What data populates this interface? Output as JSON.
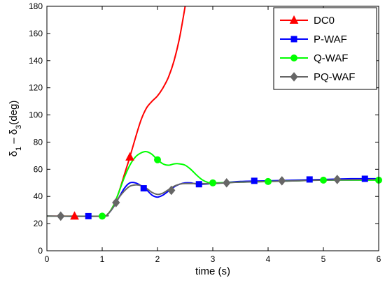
{
  "chart_data": {
    "type": "line",
    "xlabel": "time (s)",
    "ylabel": {
      "base": "δ",
      "sub1": "1",
      "sep": " – δ",
      "sub2": "3",
      "unit": "(deg)"
    },
    "xlim": [
      0,
      6
    ],
    "ylim": [
      0,
      180
    ],
    "xticks": [
      "0",
      "1",
      "2",
      "3",
      "4",
      "5",
      "6"
    ],
    "yticks": [
      "0",
      "20",
      "40",
      "60",
      "80",
      "100",
      "120",
      "140",
      "160",
      "180"
    ],
    "grid": false,
    "legend_position": "top-right",
    "series": [
      {
        "name": "DC0",
        "color": "#ff0000",
        "marker": "triangle",
        "points": [
          [
            0,
            25.5
          ],
          [
            0.5,
            25.5
          ],
          [
            1.0,
            25.5
          ],
          [
            1.1,
            27
          ],
          [
            1.2,
            33
          ],
          [
            1.3,
            43
          ],
          [
            1.4,
            56
          ],
          [
            1.5,
            69
          ],
          [
            1.6,
            83
          ],
          [
            1.7,
            96
          ],
          [
            1.8,
            105
          ],
          [
            1.9,
            110
          ],
          [
            2.0,
            114
          ],
          [
            2.1,
            120
          ],
          [
            2.2,
            128
          ],
          [
            2.3,
            140
          ],
          [
            2.4,
            157
          ],
          [
            2.5,
            180
          ]
        ],
        "markers": [
          [
            0.5,
            25.5
          ],
          [
            1.5,
            69
          ]
        ]
      },
      {
        "name": "P-WAF",
        "color": "#0000ff",
        "marker": "square",
        "points": [
          [
            0,
            25.5
          ],
          [
            1.0,
            25.5
          ],
          [
            1.1,
            27
          ],
          [
            1.2,
            32
          ],
          [
            1.3,
            39
          ],
          [
            1.4,
            46
          ],
          [
            1.5,
            50
          ],
          [
            1.6,
            50
          ],
          [
            1.7,
            48
          ],
          [
            1.8,
            45
          ],
          [
            1.9,
            41
          ],
          [
            2.0,
            39.5
          ],
          [
            2.1,
            41
          ],
          [
            2.2,
            44
          ],
          [
            2.3,
            47
          ],
          [
            2.4,
            49
          ],
          [
            2.5,
            50
          ],
          [
            2.6,
            50
          ],
          [
            2.75,
            49
          ],
          [
            3.0,
            49.5
          ],
          [
            3.5,
            51
          ],
          [
            4.0,
            51.5
          ],
          [
            4.5,
            52
          ],
          [
            5.0,
            52.5
          ],
          [
            5.5,
            53
          ],
          [
            6.0,
            53
          ]
        ],
        "markers": [
          [
            0.75,
            25.5
          ],
          [
            1.75,
            46
          ],
          [
            2.75,
            49
          ],
          [
            3.75,
            51.5
          ],
          [
            4.75,
            52.5
          ],
          [
            5.75,
            53
          ]
        ]
      },
      {
        "name": "Q-WAF",
        "color": "#00ff00",
        "marker": "circle",
        "points": [
          [
            0,
            25.5
          ],
          [
            1.0,
            25.5
          ],
          [
            1.1,
            27
          ],
          [
            1.2,
            33
          ],
          [
            1.3,
            43
          ],
          [
            1.4,
            54
          ],
          [
            1.5,
            63
          ],
          [
            1.6,
            69
          ],
          [
            1.7,
            72
          ],
          [
            1.8,
            73
          ],
          [
            1.9,
            71
          ],
          [
            2.0,
            67
          ],
          [
            2.1,
            64
          ],
          [
            2.2,
            63
          ],
          [
            2.3,
            64
          ],
          [
            2.4,
            64
          ],
          [
            2.5,
            63
          ],
          [
            2.6,
            60
          ],
          [
            2.7,
            56
          ],
          [
            2.8,
            52.5
          ],
          [
            2.9,
            50.5
          ],
          [
            3.0,
            50
          ],
          [
            3.5,
            50.5
          ],
          [
            4.0,
            51
          ],
          [
            4.5,
            51.5
          ],
          [
            5.0,
            52
          ],
          [
            6.0,
            52
          ]
        ],
        "markers": [
          [
            1.0,
            25.5
          ],
          [
            2.0,
            67
          ],
          [
            3.0,
            50
          ],
          [
            4.0,
            51
          ],
          [
            5.0,
            52
          ],
          [
            6.0,
            52
          ]
        ]
      },
      {
        "name": "PQ-WAF",
        "color": "#666666",
        "marker": "diamond",
        "points": [
          [
            0,
            25.5
          ],
          [
            1.0,
            25.5
          ],
          [
            1.1,
            27
          ],
          [
            1.2,
            32
          ],
          [
            1.3,
            39
          ],
          [
            1.4,
            44
          ],
          [
            1.5,
            47.5
          ],
          [
            1.6,
            48.5
          ],
          [
            1.7,
            48
          ],
          [
            1.8,
            46
          ],
          [
            1.9,
            43
          ],
          [
            2.0,
            41.5
          ],
          [
            2.1,
            42.5
          ],
          [
            2.2,
            45
          ],
          [
            2.3,
            47.5
          ],
          [
            2.4,
            49
          ],
          [
            2.5,
            49.5
          ],
          [
            2.75,
            49.5
          ],
          [
            3.0,
            49.5
          ],
          [
            3.5,
            50.5
          ],
          [
            4.0,
            51
          ],
          [
            4.5,
            51.5
          ],
          [
            5.0,
            52
          ],
          [
            6.0,
            52.5
          ]
        ],
        "markers": [
          [
            0.25,
            25.5
          ],
          [
            1.25,
            35.5
          ],
          [
            2.25,
            44.5
          ],
          [
            3.25,
            50
          ],
          [
            4.25,
            51.5
          ],
          [
            5.25,
            52.5
          ]
        ]
      }
    ]
  }
}
